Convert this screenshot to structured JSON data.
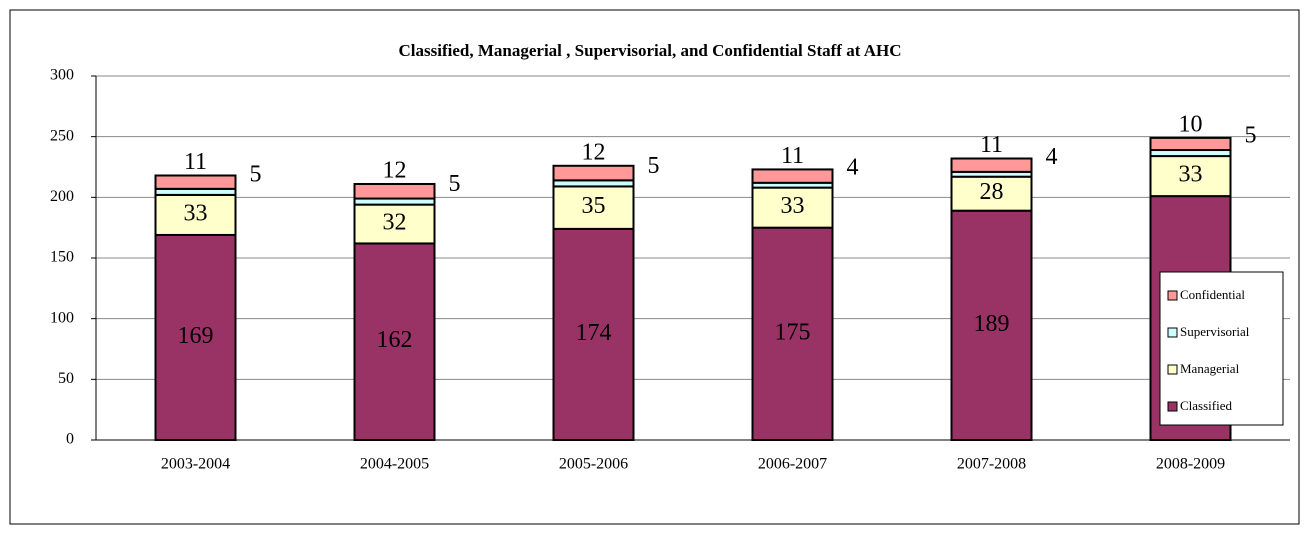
{
  "chart_data": {
    "type": "stacked_bar",
    "title": "Classified, Managerial , Supervisorial, and Confidential Staff at AHC",
    "categories": [
      "2003-2004",
      "2004-2005",
      "2005-2006",
      "2006-2007",
      "2007-2008",
      "2008-2009"
    ],
    "series": [
      {
        "name": "Classified",
        "color": "#993366",
        "values": [
          169,
          162,
          174,
          175,
          189,
          201
        ]
      },
      {
        "name": "Managerial",
        "color": "#ffffcc",
        "values": [
          33,
          32,
          35,
          33,
          28,
          33
        ]
      },
      {
        "name": "Supervisorial",
        "color": "#ccffff",
        "values": [
          5,
          5,
          5,
          4,
          4,
          5
        ]
      },
      {
        "name": "Confidential",
        "color": "#ff9999",
        "values": [
          11,
          12,
          12,
          11,
          11,
          10
        ]
      }
    ],
    "ylim": [
      0,
      300
    ],
    "yticks": [
      0,
      50,
      100,
      150,
      200,
      250,
      300
    ],
    "grid": true
  }
}
